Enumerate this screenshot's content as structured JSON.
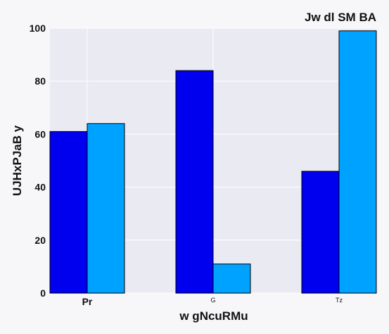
{
  "chart_data": {
    "type": "bar",
    "title": "Jw dl SM BA",
    "xlabel": "w gNcuRMu",
    "ylabel": "UJHxPJaB y",
    "categories": [
      "Pr",
      "G",
      "Tz"
    ],
    "series": [
      {
        "values": [
          61,
          84,
          46
        ],
        "color": "#0000ee"
      },
      {
        "values": [
          64,
          11,
          99
        ],
        "color": "#00a2ff"
      }
    ],
    "ylim": [
      0,
      100
    ],
    "yticks": [
      0,
      20,
      40,
      60,
      80,
      100
    ],
    "grid": true,
    "legend": "none",
    "plot_background": "#eaeaf2"
  }
}
